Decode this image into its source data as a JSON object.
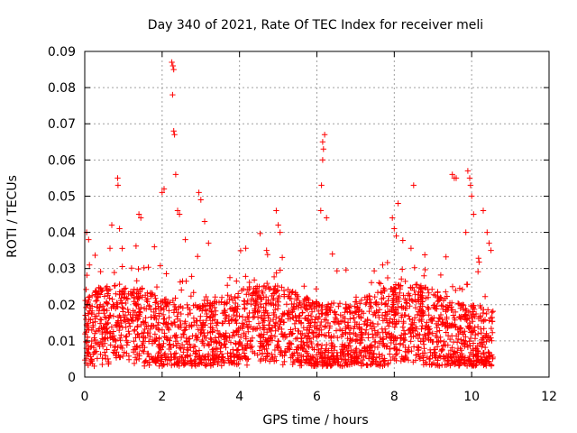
{
  "chart_data": {
    "type": "scatter",
    "title": "Day 340 of 2021, Rate Of TEC Index for receiver meli",
    "xlabel": "GPS time / hours",
    "ylabel": "ROTI / TECUs",
    "xlim": [
      0,
      12
    ],
    "ylim": [
      0,
      0.09
    ],
    "x_ticks": [
      "0",
      "2",
      "4",
      "6",
      "8",
      "10",
      "12"
    ],
    "y_ticks": [
      "0",
      "0.01",
      "0.02",
      "0.03",
      "0.04",
      "0.05",
      "0.06",
      "0.07",
      "0.08",
      "0.09"
    ],
    "x_tick_values": [
      0,
      2,
      4,
      6,
      8,
      10,
      12
    ],
    "y_tick_values": [
      0,
      0.01,
      0.02,
      0.03,
      0.04,
      0.05,
      0.06,
      0.07,
      0.08,
      0.09
    ],
    "grid": true,
    "marker": "+",
    "color": "#ff0000",
    "data_extent_x": [
      0,
      10.55
    ],
    "baseline_range": [
      0.005,
      0.025
    ],
    "spikes": [
      {
        "x": 0.05,
        "y": 0.04
      },
      {
        "x": 0.1,
        "y": 0.038
      },
      {
        "x": 0.12,
        "y": 0.031
      },
      {
        "x": 0.7,
        "y": 0.042
      },
      {
        "x": 0.85,
        "y": 0.055
      },
      {
        "x": 0.86,
        "y": 0.053
      },
      {
        "x": 0.9,
        "y": 0.041
      },
      {
        "x": 1.4,
        "y": 0.045
      },
      {
        "x": 1.45,
        "y": 0.044
      },
      {
        "x": 1.8,
        "y": 0.036
      },
      {
        "x": 2.0,
        "y": 0.051
      },
      {
        "x": 2.05,
        "y": 0.052
      },
      {
        "x": 2.25,
        "y": 0.087
      },
      {
        "x": 2.28,
        "y": 0.086
      },
      {
        "x": 2.3,
        "y": 0.085
      },
      {
        "x": 2.27,
        "y": 0.078
      },
      {
        "x": 2.3,
        "y": 0.068
      },
      {
        "x": 2.32,
        "y": 0.067
      },
      {
        "x": 2.35,
        "y": 0.056
      },
      {
        "x": 2.4,
        "y": 0.046
      },
      {
        "x": 2.45,
        "y": 0.045
      },
      {
        "x": 2.6,
        "y": 0.038
      },
      {
        "x": 2.95,
        "y": 0.051
      },
      {
        "x": 3.0,
        "y": 0.049
      },
      {
        "x": 3.1,
        "y": 0.043
      },
      {
        "x": 3.2,
        "y": 0.037
      },
      {
        "x": 4.7,
        "y": 0.035
      },
      {
        "x": 4.95,
        "y": 0.046
      },
      {
        "x": 5.0,
        "y": 0.042
      },
      {
        "x": 5.05,
        "y": 0.04
      },
      {
        "x": 6.1,
        "y": 0.046
      },
      {
        "x": 6.15,
        "y": 0.065
      },
      {
        "x": 6.17,
        "y": 0.063
      },
      {
        "x": 6.2,
        "y": 0.067
      },
      {
        "x": 6.15,
        "y": 0.06
      },
      {
        "x": 6.12,
        "y": 0.053
      },
      {
        "x": 6.25,
        "y": 0.044
      },
      {
        "x": 6.4,
        "y": 0.034
      },
      {
        "x": 7.7,
        "y": 0.031
      },
      {
        "x": 7.95,
        "y": 0.044
      },
      {
        "x": 8.0,
        "y": 0.041
      },
      {
        "x": 8.1,
        "y": 0.048
      },
      {
        "x": 8.05,
        "y": 0.039
      },
      {
        "x": 8.5,
        "y": 0.053
      },
      {
        "x": 9.5,
        "y": 0.056
      },
      {
        "x": 9.55,
        "y": 0.055
      },
      {
        "x": 9.6,
        "y": 0.055
      },
      {
        "x": 9.9,
        "y": 0.057
      },
      {
        "x": 9.95,
        "y": 0.055
      },
      {
        "x": 9.97,
        "y": 0.053
      },
      {
        "x": 10.0,
        "y": 0.05
      },
      {
        "x": 10.05,
        "y": 0.045
      },
      {
        "x": 9.85,
        "y": 0.04
      },
      {
        "x": 10.3,
        "y": 0.046
      },
      {
        "x": 10.4,
        "y": 0.04
      },
      {
        "x": 10.45,
        "y": 0.037
      },
      {
        "x": 10.5,
        "y": 0.035
      }
    ]
  }
}
